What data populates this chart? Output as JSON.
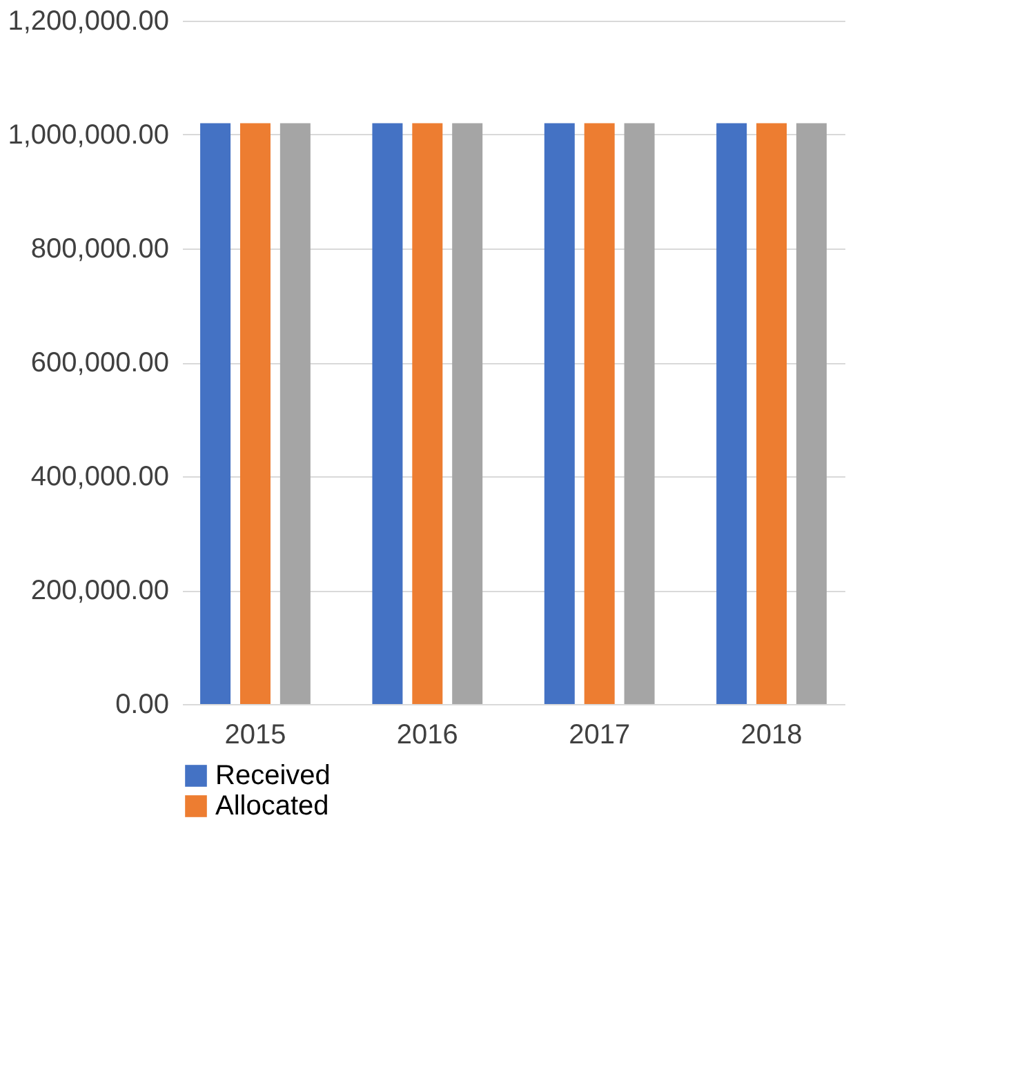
{
  "chart_data": {
    "type": "bar",
    "categories": [
      "2015",
      "2016",
      "2017",
      "2018"
    ],
    "series": [
      {
        "name": "Received",
        "color": "#4472c4",
        "values": [
          1020000,
          1020000,
          1020000,
          1020000
        ]
      },
      {
        "name": "Allocated",
        "color": "#ed7d31",
        "values": [
          1020000,
          1020000,
          1020000,
          1020000
        ]
      },
      {
        "color": "#a5a5a5",
        "values": [
          1020000,
          1020000,
          1020000,
          1020000
        ]
      }
    ],
    "ylim": [
      0,
      1200000
    ],
    "yticks": [
      {
        "value": 0,
        "label": "0.00"
      },
      {
        "value": 200000,
        "label": "200,000.00"
      },
      {
        "value": 400000,
        "label": "400,000.00"
      },
      {
        "value": 600000,
        "label": "600,000.00"
      },
      {
        "value": 800000,
        "label": "800,000.00"
      },
      {
        "value": 1000000,
        "label": "1,000,000.00"
      },
      {
        "value": 1200000,
        "label": "1,200,000.00"
      }
    ],
    "grid": "y",
    "legend": "bottom left"
  }
}
